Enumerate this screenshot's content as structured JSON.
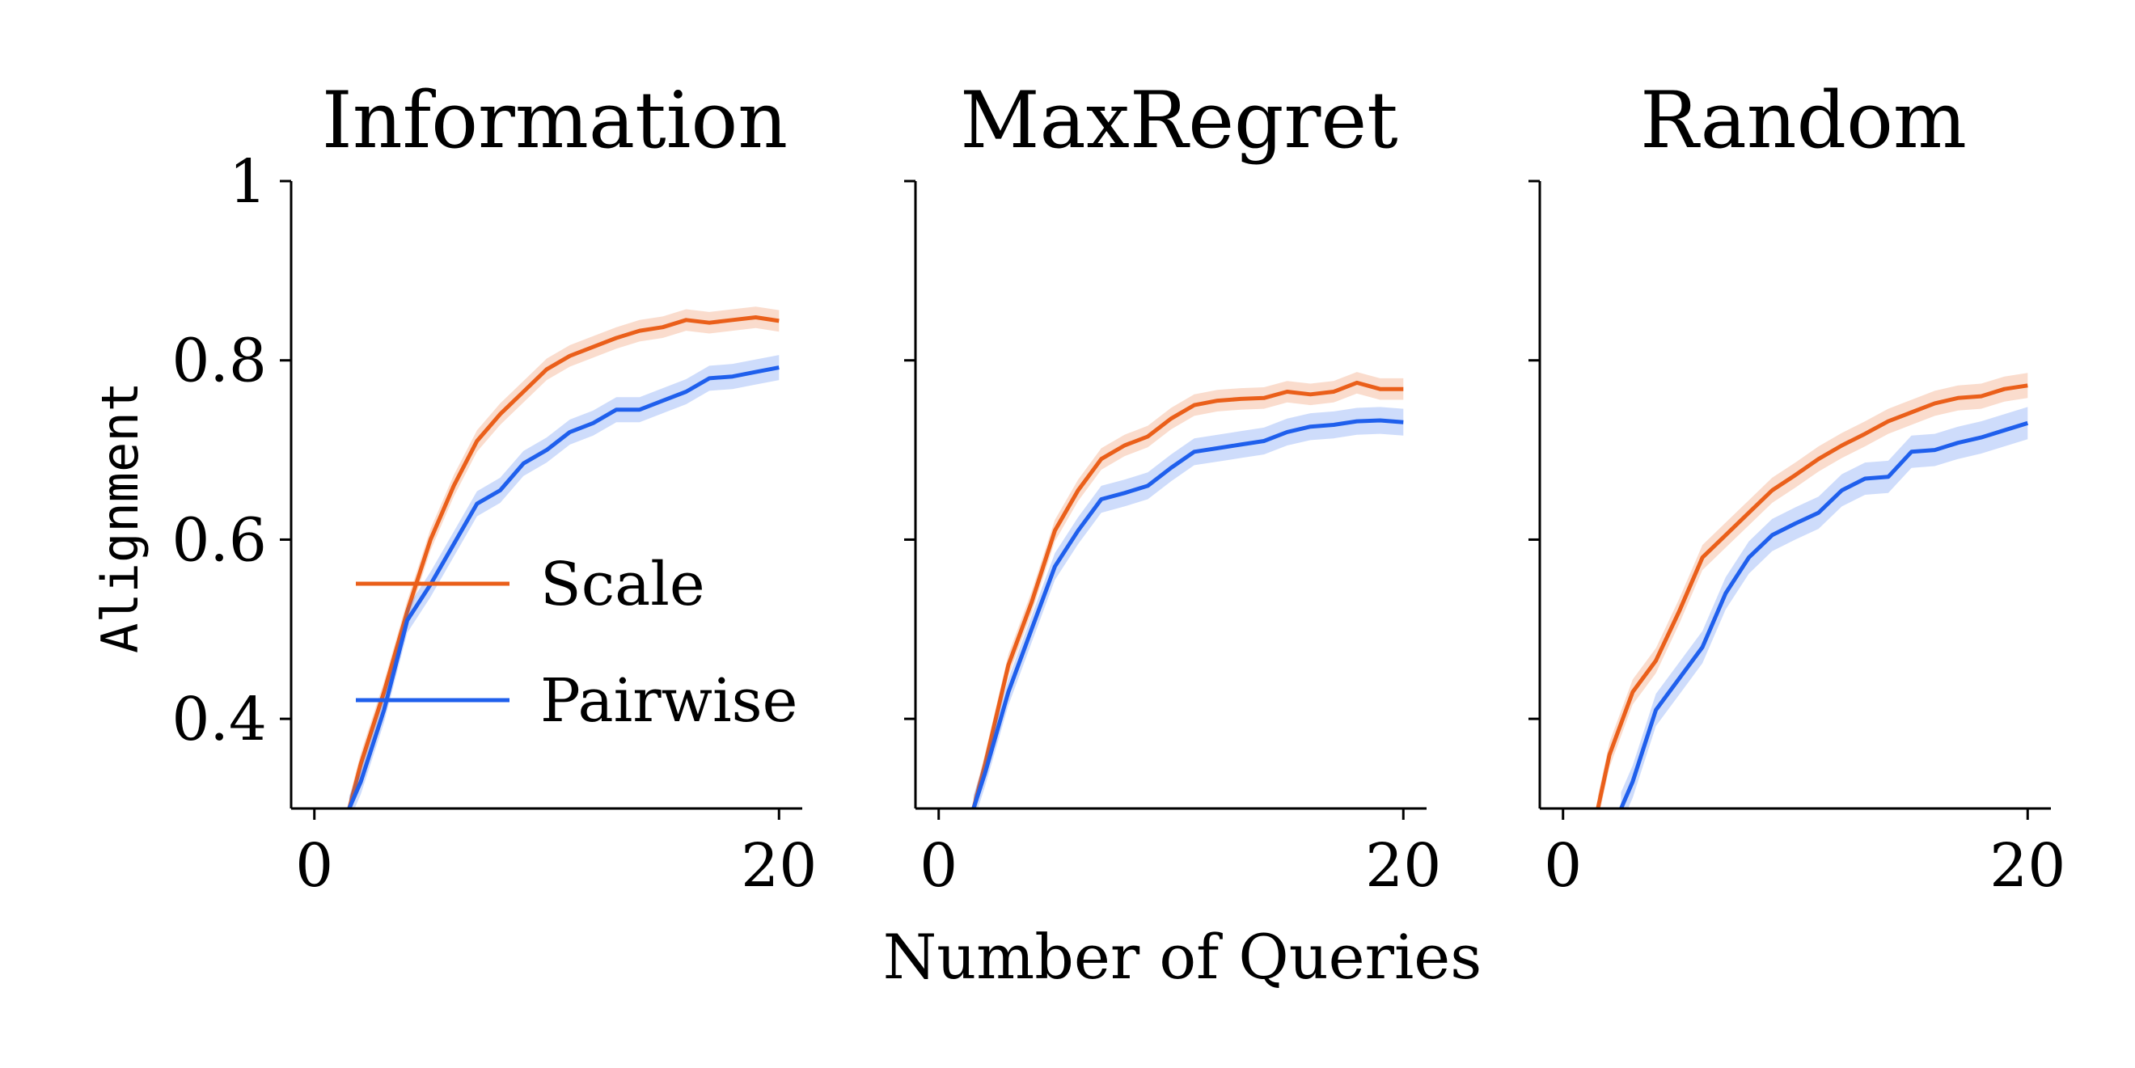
{
  "figure": {
    "xlabel": "Number of Queries",
    "ylabel": "Alignment",
    "legend": {
      "placement": "center-left of first panel",
      "entries": [
        {
          "name": "Scale",
          "color": "#ea5f1a"
        },
        {
          "name": "Pairwise",
          "color": "#1f5fec"
        }
      ]
    }
  },
  "chart_data": [
    {
      "type": "line",
      "title": "Information",
      "xlim": [
        -1,
        21
      ],
      "ylim": [
        0.3,
        1.0
      ],
      "xticks": [
        0,
        20
      ],
      "yticks": [
        0.4,
        0.6,
        0.8,
        1.0
      ],
      "series": [
        {
          "name": "Scale",
          "color": "#ea5f1a",
          "x": [
            1.5,
            2,
            3,
            4,
            5,
            6,
            7,
            8,
            9,
            10,
            11,
            12,
            13,
            14,
            15,
            16,
            17,
            18,
            19,
            20
          ],
          "y": [
            0.3,
            0.35,
            0.43,
            0.52,
            0.6,
            0.66,
            0.71,
            0.74,
            0.765,
            0.79,
            0.805,
            0.815,
            0.825,
            0.833,
            0.837,
            0.845,
            0.842,
            0.845,
            0.848,
            0.844
          ],
          "err": 0.012
        },
        {
          "name": "Pairwise",
          "color": "#1f5fec",
          "x": [
            1.5,
            2,
            3,
            4,
            5,
            6,
            7,
            8,
            9,
            10,
            11,
            12,
            13,
            14,
            15,
            16,
            17,
            18,
            19,
            20
          ],
          "y": [
            0.3,
            0.33,
            0.41,
            0.51,
            0.55,
            0.595,
            0.64,
            0.655,
            0.685,
            0.7,
            0.72,
            0.73,
            0.745,
            0.745,
            0.755,
            0.765,
            0.78,
            0.782,
            0.787,
            0.792
          ],
          "err": 0.014
        }
      ]
    },
    {
      "type": "line",
      "title": "MaxRegret",
      "xlim": [
        -1,
        21
      ],
      "ylim": [
        0.3,
        1.0
      ],
      "xticks": [
        0,
        20
      ],
      "yticks": [
        0.4,
        0.6,
        0.8,
        1.0
      ],
      "series": [
        {
          "name": "Scale",
          "color": "#ea5f1a",
          "x": [
            1.5,
            2,
            3,
            4,
            5,
            6,
            7,
            8,
            9,
            10,
            11,
            12,
            13,
            14,
            15,
            16,
            17,
            18,
            19,
            20
          ],
          "y": [
            0.3,
            0.35,
            0.46,
            0.53,
            0.61,
            0.655,
            0.69,
            0.705,
            0.715,
            0.735,
            0.75,
            0.755,
            0.757,
            0.758,
            0.765,
            0.762,
            0.765,
            0.775,
            0.768,
            0.768
          ],
          "err": 0.012
        },
        {
          "name": "Pairwise",
          "color": "#1f5fec",
          "x": [
            1.5,
            2,
            3,
            4,
            5,
            6,
            7,
            8,
            9,
            10,
            11,
            12,
            13,
            14,
            15,
            16,
            17,
            18,
            19,
            20
          ],
          "y": [
            0.3,
            0.34,
            0.43,
            0.5,
            0.57,
            0.61,
            0.645,
            0.652,
            0.66,
            0.68,
            0.698,
            0.702,
            0.706,
            0.71,
            0.72,
            0.726,
            0.728,
            0.732,
            0.733,
            0.731
          ],
          "err": 0.015
        }
      ]
    },
    {
      "type": "line",
      "title": "Random",
      "xlim": [
        -1,
        21
      ],
      "ylim": [
        0.3,
        1.0
      ],
      "xticks": [
        0,
        20
      ],
      "yticks": [
        0.4,
        0.6,
        0.8,
        1.0
      ],
      "series": [
        {
          "name": "Scale",
          "color": "#ea5f1a",
          "x": [
            1.5,
            2,
            3,
            4,
            5,
            6,
            7,
            8,
            9,
            10,
            11,
            12,
            13,
            14,
            15,
            16,
            17,
            18,
            19,
            20
          ],
          "y": [
            0.3,
            0.36,
            0.43,
            0.465,
            0.52,
            0.58,
            0.605,
            0.63,
            0.655,
            0.672,
            0.69,
            0.705,
            0.718,
            0.732,
            0.742,
            0.752,
            0.758,
            0.76,
            0.768,
            0.772
          ],
          "err": 0.014
        },
        {
          "name": "Pairwise",
          "color": "#1f5fec",
          "x": [
            2.5,
            3,
            4,
            5,
            6,
            7,
            8,
            9,
            10,
            11,
            12,
            13,
            14,
            15,
            16,
            17,
            18,
            19,
            20
          ],
          "y": [
            0.3,
            0.33,
            0.41,
            0.445,
            0.48,
            0.54,
            0.58,
            0.605,
            0.618,
            0.63,
            0.655,
            0.668,
            0.67,
            0.698,
            0.7,
            0.708,
            0.714,
            0.722,
            0.73
          ],
          "err": 0.018
        }
      ]
    }
  ]
}
